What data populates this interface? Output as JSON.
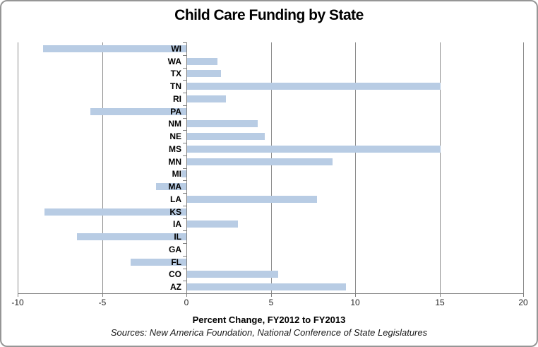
{
  "chart_data": {
    "type": "bar",
    "orientation": "horizontal",
    "title": "Child Care Funding by State",
    "xlabel": "Percent Change, FY2012 to FY2013",
    "source_note": "Sources: New America Foundation, National Conference of State Legislatures",
    "categories_top_to_bottom": [
      "WI",
      "WA",
      "TX",
      "TN",
      "RI",
      "PA",
      "NM",
      "NE",
      "MS",
      "MN",
      "MI",
      "MA",
      "LA",
      "KS",
      "IA",
      "IL",
      "GA",
      "FL",
      "CO",
      "AZ"
    ],
    "values": [
      -8.5,
      1.8,
      2.0,
      15.0,
      2.3,
      -5.7,
      4.2,
      4.6,
      15.0,
      8.6,
      -0.3,
      -1.8,
      7.7,
      -8.4,
      3.0,
      -6.5,
      0.0,
      -3.3,
      5.4,
      9.4
    ],
    "xlim": [
      -10,
      20
    ],
    "xticks": [
      -10,
      -5,
      0,
      5,
      10,
      15,
      20
    ],
    "grid": true,
    "legend": "none",
    "bar_color": "#b8cce4",
    "gridline_color": "#8c8c8c",
    "axis_color": "#7f7f7f"
  }
}
